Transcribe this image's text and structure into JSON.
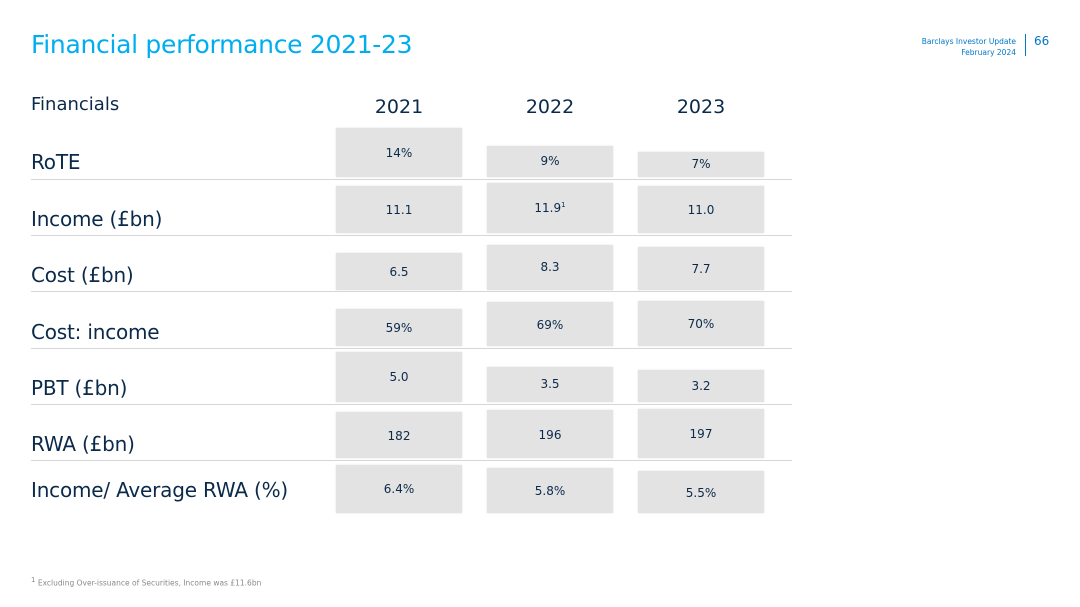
{
  "header": {
    "title": "Financial performance 2021-23",
    "doc_name": "Barclays Investor Update",
    "doc_date": "February 2024",
    "page_number": "66"
  },
  "table": {
    "heading": "Financials",
    "years": [
      "2021",
      "2022",
      "2023"
    ],
    "rows": [
      {
        "label": "RoTE",
        "values": [
          "14%",
          "9%",
          "7%"
        ]
      },
      {
        "label": "Income (£bn)",
        "values": [
          "11.1",
          "11.9",
          "11.0"
        ],
        "footnote_marker": "1"
      },
      {
        "label": "Cost (£bn)",
        "values": [
          "6.5",
          "8.3",
          "7.7"
        ]
      },
      {
        "label": "Cost: income",
        "values": [
          "59%",
          "69%",
          "70%"
        ]
      },
      {
        "label": "PBT (£bn)",
        "values": [
          "5.0",
          "3.5",
          "3.2"
        ]
      },
      {
        "label": "RWA (£bn)",
        "values": [
          "182",
          "196",
          "197"
        ]
      },
      {
        "label": "Income/ Average RWA (%)",
        "values": [
          "6.4%",
          "5.8%",
          "5.5%"
        ]
      }
    ]
  },
  "footnote": {
    "marker": "1",
    "text": "Excluding Over-issuance of Securities, Income was £11.6bn"
  }
}
